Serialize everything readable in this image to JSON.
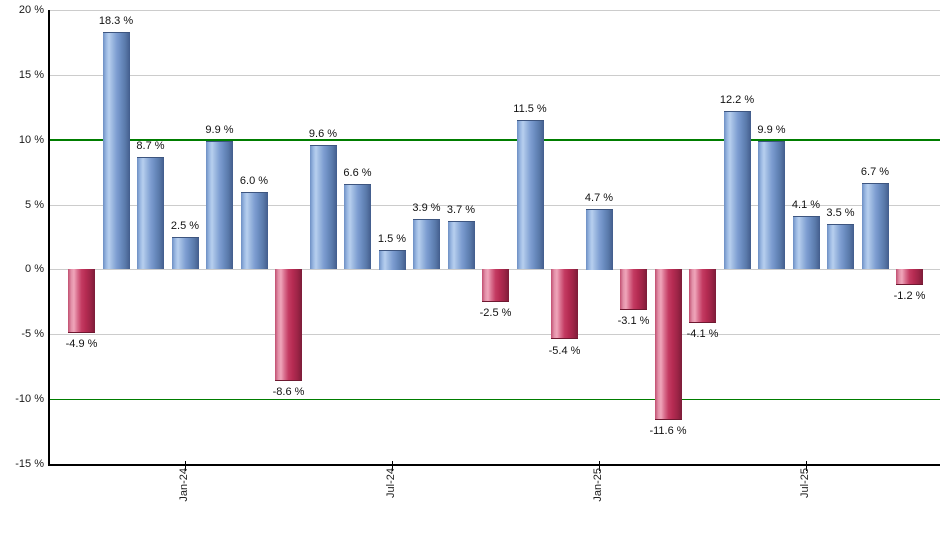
{
  "chart_data": {
    "type": "bar",
    "title": "",
    "xlabel": "",
    "ylabel": "",
    "ylim": [
      -15,
      20
    ],
    "grid": true,
    "legend": "none",
    "y_ticks": [
      20,
      15,
      10,
      5,
      0,
      -5,
      -10,
      -15
    ],
    "y_tick_labels": [
      "20 %",
      "15 %",
      "10 %",
      "5 %",
      "0 %",
      "-5 %",
      "-10 %",
      "-15 %"
    ],
    "reference_lines": [
      {
        "y": 10,
        "color": "#007d00"
      },
      {
        "y": -10,
        "color": "#007d00"
      }
    ],
    "x_tick_labels": [
      {
        "label": "Jan-24",
        "bar_index": 3
      },
      {
        "label": "Jul-24",
        "bar_index": 9
      },
      {
        "label": "Jan-25",
        "bar_index": 15
      },
      {
        "label": "Jul-25",
        "bar_index": 21
      }
    ],
    "values": [
      -4.9,
      18.3,
      8.7,
      2.5,
      9.9,
      6.0,
      -8.6,
      9.6,
      6.6,
      1.5,
      3.9,
      3.7,
      -2.5,
      11.5,
      -5.4,
      4.7,
      -3.1,
      -11.6,
      -4.1,
      12.2,
      9.9,
      4.1,
      3.5,
      6.7,
      -1.2
    ],
    "value_labels": [
      "-4.9 %",
      "18.3 %",
      "8.7 %",
      "2.5 %",
      "9.9 %",
      "6.0 %",
      "-8.6 %",
      "9.6 %",
      "6.6 %",
      "1.5 %",
      "3.9 %",
      "3.7 %",
      "-2.5 %",
      "11.5 %",
      "-5.4 %",
      "4.7 %",
      "-3.1 %",
      "-11.6 %",
      "-4.1 %",
      "12.2 %",
      "9.9 %",
      "4.1 %",
      "3.5 %",
      "6.7 %",
      "-1.2 %"
    ],
    "colors": {
      "positive_bar": "#7b9cd1",
      "negative_bar": "#c22a55",
      "grid": "#cccccc",
      "axis": "#000000",
      "reference_line": "#007d00",
      "background": "#ffffff",
      "label_text": "#111111"
    }
  }
}
